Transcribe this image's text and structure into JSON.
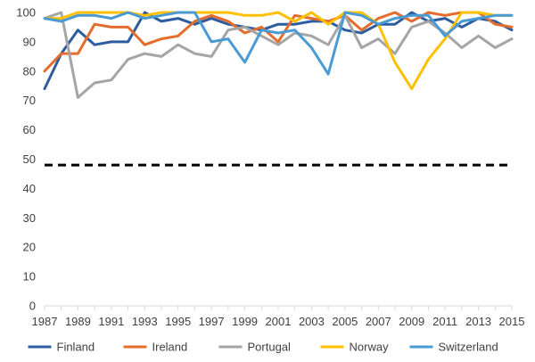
{
  "chart_data": {
    "type": "line",
    "title": "",
    "xlabel": "",
    "ylabel": "",
    "x": [
      1987,
      1988,
      1989,
      1990,
      1991,
      1992,
      1993,
      1994,
      1995,
      1996,
      1997,
      1998,
      1999,
      2000,
      2001,
      2002,
      2003,
      2004,
      2005,
      2006,
      2007,
      2008,
      2009,
      2010,
      2011,
      2012,
      2013,
      2014,
      2015
    ],
    "x_tick_labels": [
      "1987",
      "1989",
      "1991",
      "1993",
      "1995",
      "1997",
      "1999",
      "2001",
      "2003",
      "2005",
      "2007",
      "2009",
      "2011",
      "2013",
      "2015"
    ],
    "y_tick_labels": [
      "0",
      "10",
      "20",
      "30",
      "40",
      "50",
      "60",
      "70",
      "80",
      "90",
      "100"
    ],
    "xlim": [
      1987,
      2015
    ],
    "ylim": [
      0,
      100
    ],
    "grid": false,
    "legend_position": "bottom",
    "reference_line": {
      "value": 48,
      "style": "dashed",
      "color": "#000000"
    },
    "series": [
      {
        "name": "Finland",
        "color": "#2E5D9F",
        "values": [
          74,
          86,
          94,
          89,
          90,
          90,
          100,
          97,
          98,
          96,
          98,
          96,
          95,
          94,
          96,
          96,
          97,
          97,
          94,
          93,
          96,
          96,
          100,
          97,
          98,
          95,
          98,
          97,
          94
        ]
      },
      {
        "name": "Ireland",
        "color": "#E46C2C",
        "values": [
          80,
          86,
          86,
          96,
          95,
          95,
          89,
          91,
          92,
          97,
          99,
          97,
          93,
          95,
          90,
          99,
          98,
          97,
          99,
          94,
          98,
          100,
          97,
          100,
          99,
          100,
          100,
          96,
          95
        ]
      },
      {
        "name": "Portugal",
        "color": "#A5A5A5",
        "values": [
          98,
          100,
          71,
          76,
          77,
          84,
          86,
          85,
          89,
          86,
          85,
          94,
          95,
          92,
          89,
          93,
          92,
          89,
          99,
          88,
          91,
          86,
          95,
          97,
          93,
          88,
          92,
          88,
          91
        ]
      },
      {
        "name": "Norway",
        "color": "#FFC000",
        "values": [
          98,
          98,
          100,
          100,
          100,
          100,
          99,
          100,
          100,
          100,
          100,
          100,
          99,
          99,
          100,
          97,
          100,
          96,
          100,
          100,
          96,
          83,
          74,
          84,
          91,
          100,
          100,
          99,
          99
        ]
      },
      {
        "name": "Switzerland",
        "color": "#4A9AD4",
        "values": [
          98,
          97,
          99,
          99,
          98,
          100,
          98,
          99,
          100,
          100,
          90,
          91,
          83,
          94,
          93,
          94,
          88,
          79,
          100,
          99,
          96,
          98,
          99,
          99,
          92,
          97,
          98,
          99,
          99
        ]
      }
    ]
  }
}
